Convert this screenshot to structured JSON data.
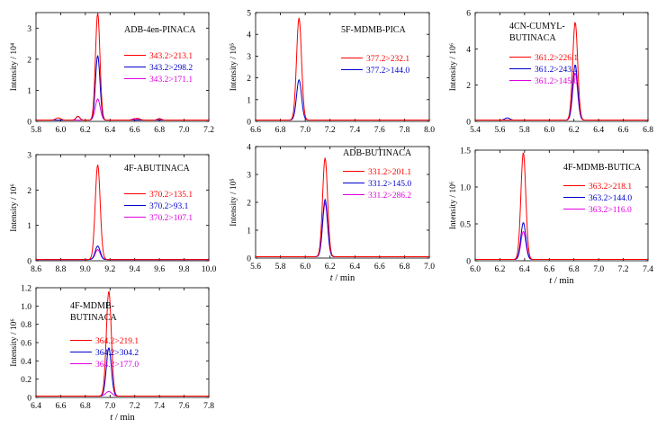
{
  "page": {
    "colors": {
      "red": "#ff0000",
      "blue": "#0000cc",
      "magenta": "#e000e0",
      "axis": "#000000"
    }
  },
  "chart_data": [
    {
      "type": "line",
      "compound": "ADB-4en-PINACA",
      "xlim": [
        5.8,
        7.2
      ],
      "xticks": [
        "5.8",
        "6.0",
        "6.2",
        "6.4",
        "6.6",
        "6.8",
        "7.0",
        "7.2"
      ],
      "ylim": [
        0,
        3.5
      ],
      "yticks": [
        "0",
        "1",
        "2",
        "3"
      ],
      "ylabel": "Intensity / 10⁴",
      "xlabel": "",
      "series": [
        {
          "name": "343.2>213.1",
          "color": "#ff0000",
          "peak_x": 6.3,
          "peak_y": 3.45,
          "width": 0.018,
          "bumps": [
            [
              5.98,
              0.07,
              0.02
            ],
            [
              6.14,
              0.12,
              0.015
            ],
            [
              6.62,
              0.06,
              0.02
            ],
            [
              6.8,
              0.05,
              0.015
            ]
          ]
        },
        {
          "name": "343.2>298.2",
          "color": "#0000cc",
          "peak_x": 6.3,
          "peak_y": 2.08,
          "width": 0.018,
          "bumps": [
            [
              6.14,
              0.12,
              0.015
            ]
          ]
        },
        {
          "name": "343.2>171.1",
          "color": "#e000e0",
          "peak_x": 6.3,
          "peak_y": 0.68,
          "width": 0.02,
          "bumps": [
            [
              6.6,
              0.05,
              0.02
            ],
            [
              6.8,
              0.05,
              0.015
            ]
          ]
        }
      ]
    },
    {
      "type": "line",
      "compound": "5F-MDMB-PICA",
      "xlim": [
        6.6,
        8.0
      ],
      "xticks": [
        "6.6",
        "6.8",
        "7.0",
        "7.2",
        "7.4",
        "7.6",
        "7.8",
        "8.0"
      ],
      "ylim": [
        0,
        5
      ],
      "yticks": [
        "0",
        "1",
        "2",
        "3",
        "4",
        "5"
      ],
      "ylabel": "Intensity / 10⁵",
      "xlabel": "",
      "series": [
        {
          "name": "377.2>232.1",
          "color": "#ff0000",
          "peak_x": 6.95,
          "peak_y": 4.7,
          "width": 0.02,
          "bumps": []
        },
        {
          "name": "377.2>144.0",
          "color": "#0000cc",
          "peak_x": 6.95,
          "peak_y": 1.85,
          "width": 0.02,
          "bumps": []
        }
      ]
    },
    {
      "type": "line",
      "compound": "4CN-CUMYL-BUTINACA",
      "xlim": [
        5.4,
        6.8
      ],
      "xticks": [
        "5.4",
        "5.6",
        "5.8",
        "6.0",
        "6.2",
        "6.4",
        "6.6",
        "6.8"
      ],
      "ylim": [
        0,
        6
      ],
      "yticks": [
        "0",
        "2",
        "4",
        "6"
      ],
      "ylabel": "Intensity / 10⁶",
      "xlabel": "",
      "series": [
        {
          "name": "361.2>226.1",
          "color": "#ff0000",
          "peak_x": 6.21,
          "peak_y": 5.4,
          "width": 0.02,
          "bumps": []
        },
        {
          "name": "361.2>243.1",
          "color": "#0000cc",
          "peak_x": 6.21,
          "peak_y": 3.05,
          "width": 0.02,
          "bumps": [
            [
              5.66,
              0.12,
              0.02
            ]
          ]
        },
        {
          "name": "361.2>145.0",
          "color": "#e000e0",
          "peak_x": 6.21,
          "peak_y": 2.6,
          "width": 0.02,
          "bumps": []
        }
      ]
    },
    {
      "type": "line",
      "compound": "4F-ABUTINACA",
      "xlim": [
        8.6,
        10.0
      ],
      "xticks": [
        "8.6",
        "8.8",
        "9.0",
        "9.2",
        "9.4",
        "9.6",
        "9.8",
        "10.0"
      ],
      "ylim": [
        0,
        3
      ],
      "yticks": [
        "0",
        "1",
        "2",
        "3"
      ],
      "ylabel": "Intensity / 10⁶",
      "xlabel": "",
      "series": [
        {
          "name": "370.2>135.1",
          "color": "#ff0000",
          "peak_x": 9.1,
          "peak_y": 2.68,
          "width": 0.02,
          "bumps": []
        },
        {
          "name": "370.2>93.1",
          "color": "#0000cc",
          "peak_x": 9.1,
          "peak_y": 0.38,
          "width": 0.02,
          "bumps": []
        },
        {
          "name": "370.2>107.1",
          "color": "#e000e0",
          "peak_x": 9.1,
          "peak_y": 0.28,
          "width": 0.02,
          "bumps": []
        }
      ]
    },
    {
      "type": "line",
      "compound": "ADB-BUTINACA",
      "xlim": [
        5.6,
        7.0
      ],
      "xticks": [
        "5.6",
        "5.8",
        "6.0",
        "6.2",
        "6.4",
        "6.6",
        "6.8",
        "7.0"
      ],
      "ylim": [
        0,
        4
      ],
      "yticks": [
        "0",
        "1",
        "2",
        "3",
        "4"
      ],
      "ylabel": "Intensity / 10⁵",
      "xlabel": "t / min",
      "series": [
        {
          "name": "331.2>201.1",
          "color": "#ff0000",
          "peak_x": 6.16,
          "peak_y": 3.55,
          "width": 0.02,
          "bumps": []
        },
        {
          "name": "331.2>145.0",
          "color": "#0000cc",
          "peak_x": 6.16,
          "peak_y": 2.05,
          "width": 0.02,
          "bumps": []
        },
        {
          "name": "331.2>286.2",
          "color": "#e000e0",
          "peak_x": 6.16,
          "peak_y": 1.92,
          "width": 0.02,
          "bumps": []
        }
      ]
    },
    {
      "type": "line",
      "compound": "4F-MDMB-BUTICA",
      "xlim": [
        6.0,
        7.4
      ],
      "xticks": [
        "6.0",
        "6.2",
        "6.4",
        "6.6",
        "6.8",
        "7.0",
        "7.2",
        "7.4"
      ],
      "ylim": [
        0,
        1.5
      ],
      "yticks": [
        "0",
        "0.5",
        "1.0",
        "1.5"
      ],
      "ylabel": "Intensity / 10⁶",
      "xlabel": "t / min",
      "series": [
        {
          "name": "363.2>218.1",
          "color": "#ff0000",
          "peak_x": 6.39,
          "peak_y": 1.45,
          "width": 0.02,
          "bumps": []
        },
        {
          "name": "363.2>144.0",
          "color": "#0000cc",
          "peak_x": 6.39,
          "peak_y": 0.5,
          "width": 0.02,
          "bumps": []
        },
        {
          "name": "363.2>116.0",
          "color": "#e000e0",
          "peak_x": 6.39,
          "peak_y": 0.38,
          "width": 0.02,
          "bumps": []
        }
      ]
    },
    {
      "type": "line",
      "compound": "4F-MDMB-BUTINACA",
      "xlim": [
        6.4,
        7.8
      ],
      "xticks": [
        "6.4",
        "6.6",
        "6.8",
        "7.0",
        "7.2",
        "7.4",
        "7.6",
        "7.8"
      ],
      "ylim": [
        0,
        1.2
      ],
      "yticks": [
        "0",
        "0.2",
        "0.4",
        "0.6",
        "0.8",
        "1.0",
        "1.2"
      ],
      "ylabel": "Intensity / 10⁶",
      "xlabel": "t / min",
      "series": [
        {
          "name": "364.2>219.1",
          "color": "#ff0000",
          "peak_x": 6.99,
          "peak_y": 1.15,
          "width": 0.02,
          "bumps": []
        },
        {
          "name": "364.2>304.2",
          "color": "#0000cc",
          "peak_x": 6.99,
          "peak_y": 0.53,
          "width": 0.02,
          "bumps": []
        },
        {
          "name": "364.2>177.0",
          "color": "#e000e0",
          "peak_x": 6.99,
          "peak_y": 0.05,
          "width": 0.025,
          "bumps": []
        }
      ]
    }
  ]
}
